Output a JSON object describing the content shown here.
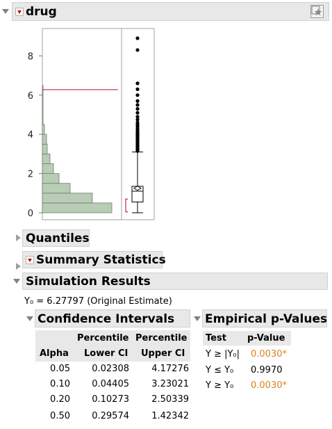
{
  "drug_section": {
    "title": "drug",
    "histogram": {
      "y_ticks": [
        "0",
        "2",
        "4",
        "6",
        "8"
      ],
      "bins": [
        {
          "lo": 0,
          "hi": 0.5,
          "rel_width": 1.0
        },
        {
          "lo": 0.5,
          "hi": 1.0,
          "rel_width": 0.72
        },
        {
          "lo": 1.0,
          "hi": 1.5,
          "rel_width": 0.4
        },
        {
          "lo": 1.5,
          "hi": 2.0,
          "rel_width": 0.24
        },
        {
          "lo": 2.0,
          "hi": 2.5,
          "rel_width": 0.16
        },
        {
          "lo": 2.5,
          "hi": 3.0,
          "rel_width": 0.11
        },
        {
          "lo": 3.0,
          "hi": 3.5,
          "rel_width": 0.07
        },
        {
          "lo": 3.5,
          "hi": 4.0,
          "rel_width": 0.06
        },
        {
          "lo": 4.0,
          "hi": 4.5,
          "rel_width": 0.03
        },
        {
          "lo": 4.5,
          "hi": 6.5,
          "rel_width": 0.01
        }
      ],
      "reference_line_value": 6.27797,
      "bar_color": "#b9ccb6",
      "line_color": "#c0283c"
    },
    "boxplot": {
      "min": 0,
      "q1": 0.55,
      "median": 1.1,
      "q3": 1.35,
      "whisker_high": 3.1,
      "mean": 1.25,
      "outliers": [
        3.15,
        3.2,
        3.25,
        3.3,
        3.35,
        3.4,
        3.45,
        3.5,
        3.55,
        3.6,
        3.65,
        3.7,
        3.75,
        3.8,
        3.85,
        3.9,
        3.95,
        4.0,
        4.05,
        4.1,
        4.15,
        4.2,
        4.3,
        4.4,
        4.5,
        4.6,
        4.75,
        4.9,
        5.1,
        5.3,
        5.5,
        5.7,
        6.0,
        6.3,
        6.6,
        8.3,
        8.9
      ]
    }
  },
  "quantiles": {
    "title": "Quantiles"
  },
  "summary_statistics": {
    "title": "Summary Statistics"
  },
  "simulation_results": {
    "title": "Simulation Results",
    "y0_line": "Y₀ = 6.27797 (Original Estimate)",
    "confidence_intervals": {
      "title": "Confidence Intervals",
      "headers": {
        "alpha": "Alpha",
        "lower_top": "Percentile",
        "lower_bottom": "Lower CI",
        "upper_top": "Percentile",
        "upper_bottom": "Upper CI"
      },
      "rows": [
        {
          "alpha": "0.05",
          "lower": "0.02308",
          "upper": "4.17276"
        },
        {
          "alpha": "0.10",
          "lower": "0.04405",
          "upper": "3.23021"
        },
        {
          "alpha": "0.20",
          "lower": "0.10273",
          "upper": "2.50339"
        },
        {
          "alpha": "0.50",
          "lower": "0.29574",
          "upper": "1.42342"
        }
      ]
    },
    "empirical_p_values": {
      "title": "Empirical p-Values",
      "headers": {
        "test": "Test",
        "p_value": "p-Value"
      },
      "rows": [
        {
          "test": "Y ≥ |Y₀|",
          "p_value": "0.0030*",
          "highlight": true
        },
        {
          "test": "Y ≤ Y₀",
          "p_value": "0.9970",
          "highlight": false
        },
        {
          "test": "Y ≥ Y₀",
          "p_value": "0.0030*",
          "highlight": true
        }
      ]
    }
  },
  "colors": {
    "header_bg": "#e8e8e8",
    "highlight": "#d98022",
    "accent_red": "#cc0000"
  }
}
